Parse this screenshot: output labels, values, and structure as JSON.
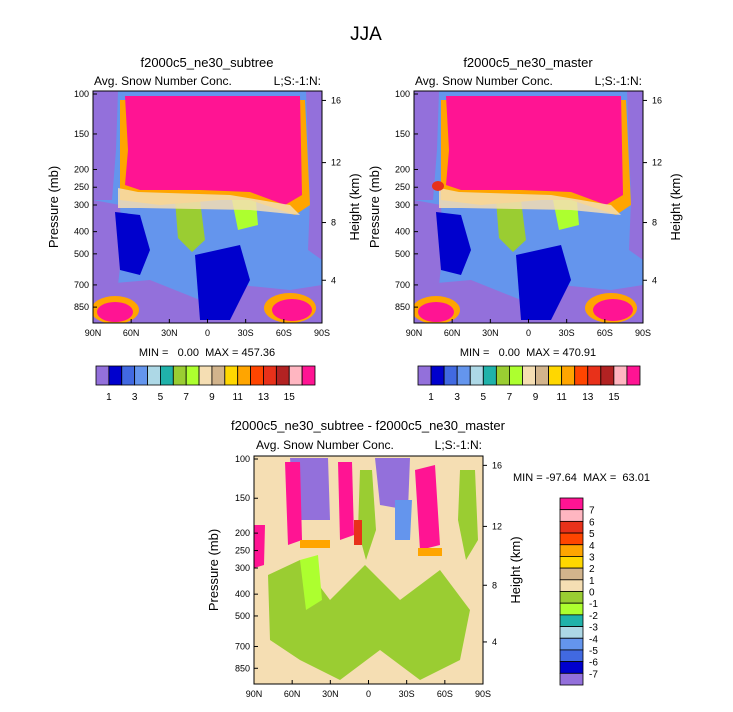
{
  "page_title": "JJA",
  "colors": {
    "purple": "#9370DB",
    "navy": "#0000CD",
    "royal": "#4169E1",
    "cornflower": "#6495ED",
    "lightblue": "#ADD8E6",
    "teal": "#20B2AA",
    "yellowgreen": "#9ACD32",
    "lightgreen": "#ADFF2F",
    "cream": "#F5DEB3",
    "tan": "#D2B48C",
    "yellow": "#FFD700",
    "orange": "#FFA500",
    "darkorange": "#FF4500",
    "red": "#E8311A",
    "brown": "#B22222",
    "pink": "#FFB6C1",
    "magenta": "#FF1493"
  },
  "chart_data": [
    {
      "type": "heatmap",
      "title": "f2000c5_ne30_subtree",
      "field_label": "Avg. Snow Number Conc.",
      "corner_label": "L;S:-1:N:",
      "ylabel": "Pressure (mb)",
      "ylabel_right": "Height (km)",
      "x_ticks": [
        "90N",
        "60N",
        "30N",
        "0",
        "30S",
        "60S",
        "90S"
      ],
      "y_ticks": [
        "100",
        "150",
        "200",
        "250",
        "300",
        "400",
        "500",
        "700",
        "850"
      ],
      "y_ticks_right": [
        "16",
        "12",
        "8",
        "4"
      ],
      "stats_text": "MIN =   0.00  MAX = 457.36",
      "colorbar_labels": [
        "1",
        "3",
        "5",
        "7",
        "9",
        "11",
        "13",
        "15"
      ],
      "colorbar_colors": [
        "#9370DB",
        "#0000CD",
        "#4169E1",
        "#6495ED",
        "#ADD8E6",
        "#20B2AA",
        "#9ACD32",
        "#ADFF2F",
        "#F5DEB3",
        "#D2B48C",
        "#FFD700",
        "#FFA500",
        "#FF4500",
        "#E8311A",
        "#B22222",
        "#FFB6C1",
        "#FF1493"
      ]
    },
    {
      "type": "heatmap",
      "title": "f2000c5_ne30_master",
      "field_label": "Avg. Snow Number Conc.",
      "corner_label": "L;S:-1:N:",
      "ylabel": "Pressure (mb)",
      "ylabel_right": "Height (km)",
      "x_ticks": [
        "90N",
        "60N",
        "30N",
        "0",
        "30S",
        "60S",
        "90S"
      ],
      "y_ticks": [
        "100",
        "150",
        "200",
        "250",
        "300",
        "400",
        "500",
        "700",
        "850"
      ],
      "y_ticks_right": [
        "16",
        "12",
        "8",
        "4"
      ],
      "stats_text": "MIN =   0.00  MAX = 470.91",
      "colorbar_labels": [
        "1",
        "3",
        "5",
        "7",
        "9",
        "11",
        "13",
        "15"
      ],
      "colorbar_colors": [
        "#9370DB",
        "#0000CD",
        "#4169E1",
        "#6495ED",
        "#ADD8E6",
        "#20B2AA",
        "#9ACD32",
        "#ADFF2F",
        "#F5DEB3",
        "#D2B48C",
        "#FFD700",
        "#FFA500",
        "#FF4500",
        "#E8311A",
        "#B22222",
        "#FFB6C1",
        "#FF1493"
      ]
    },
    {
      "type": "heatmap",
      "title": "f2000c5_ne30_subtree - f2000c5_ne30_master",
      "field_label": "Avg. Snow Number Conc.",
      "corner_label": "L;S:-1:N:",
      "ylabel": "Pressure (mb)",
      "ylabel_right": "Height (km)",
      "x_ticks": [
        "90N",
        "60N",
        "30N",
        "0",
        "30S",
        "60S",
        "90S"
      ],
      "y_ticks": [
        "100",
        "150",
        "200",
        "250",
        "300",
        "400",
        "500",
        "700",
        "850"
      ],
      "y_ticks_right": [
        "16",
        "12",
        "8",
        "4"
      ],
      "stats_text": "MIN = -97.64  MAX =  63.01",
      "colorbar_labels": [
        "7",
        "6",
        "5",
        "4",
        "3",
        "2",
        "1",
        "0",
        "-1",
        "-2",
        "-3",
        "-4",
        "-5",
        "-6",
        "-7"
      ],
      "colorbar_colors": [
        "#FF1493",
        "#FFB6C1",
        "#E8311A",
        "#FF4500",
        "#FFA500",
        "#FFD700",
        "#D2B48C",
        "#F5DEB3",
        "#9ACD32",
        "#ADFF2F",
        "#20B2AA",
        "#ADD8E6",
        "#6495ED",
        "#4169E1",
        "#0000CD",
        "#9370DB"
      ]
    }
  ]
}
